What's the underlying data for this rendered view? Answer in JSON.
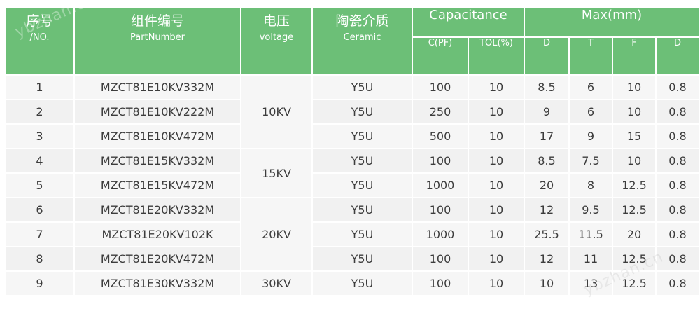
{
  "headers": {
    "no_zh": "序号",
    "no_en": "/NO.",
    "part_zh": "组件编号",
    "part_en": "PartNumber",
    "voltage_zh": "电压",
    "voltage_en": "voltage",
    "ceramic_zh": "陶瓷介质",
    "ceramic_en": "Ceramic",
    "capacitance": "Capacitance",
    "max": "Max(mm)",
    "cpf": "C(PF)",
    "tol": "TOL(%)",
    "d": "D",
    "t": "T",
    "f": "F",
    "d2": "D"
  },
  "voltages": [
    "10KV",
    "15KV",
    "20KV",
    "30KV"
  ],
  "rows": [
    {
      "no": "1",
      "part": "MZCT81E10KV332M",
      "ceramic": "Y5U",
      "cpf": "100",
      "tol": "10",
      "d": "8.5",
      "t": "6",
      "f": "10",
      "d2": "0.8"
    },
    {
      "no": "2",
      "part": "MZCT81E10KV222M",
      "ceramic": "Y5U",
      "cpf": "250",
      "tol": "10",
      "d": "9",
      "t": "6",
      "f": "10",
      "d2": "0.8"
    },
    {
      "no": "3",
      "part": "MZCT81E10KV472M",
      "ceramic": "Y5U",
      "cpf": "500",
      "tol": "10",
      "d": "17",
      "t": "9",
      "f": "15",
      "d2": "0.8"
    },
    {
      "no": "4",
      "part": "MZCT81E15KV332M",
      "ceramic": "Y5U",
      "cpf": "100",
      "tol": "10",
      "d": "8.5",
      "t": "7.5",
      "f": "10",
      "d2": "0.8"
    },
    {
      "no": "5",
      "part": "MZCT81E15KV472M",
      "ceramic": "Y5U",
      "cpf": "1000",
      "tol": "10",
      "d": "20",
      "t": "8",
      "f": "12.5",
      "d2": "0.8"
    },
    {
      "no": "6",
      "part": "MZCT81E20KV332M",
      "ceramic": "Y5U",
      "cpf": "100",
      "tol": "10",
      "d": "12",
      "t": "9.5",
      "f": "12.5",
      "d2": "0.8"
    },
    {
      "no": "7",
      "part": "MZCT81E20KV102K",
      "ceramic": "Y5U",
      "cpf": "1000",
      "tol": "10",
      "d": "25.5",
      "t": "11.5",
      "f": "20",
      "d2": "0.8"
    },
    {
      "no": "8",
      "part": "MZCT81E20KV472M",
      "ceramic": "Y5U",
      "cpf": "100",
      "tol": "10",
      "d": "12",
      "t": "11",
      "f": "12.5",
      "d2": "0.8"
    },
    {
      "no": "9",
      "part": "MZCT81E30KV332M",
      "ceramic": "Y5U",
      "cpf": "100",
      "tol": "10",
      "d": "10",
      "t": "13",
      "f": "12.5",
      "d2": "0.8"
    }
  ],
  "watermark": "ybzhan.cn",
  "colors": {
    "header_bg": "#6cbf77",
    "header_text": "#ffffff",
    "cell_bg": "#f1f1f1",
    "cell_text": "#3c3c3c"
  }
}
